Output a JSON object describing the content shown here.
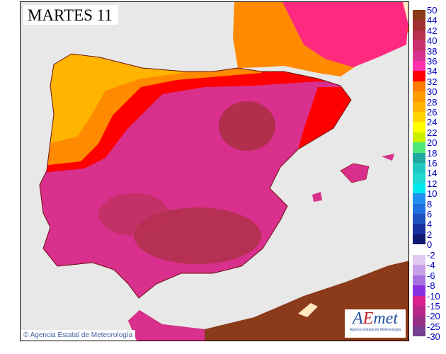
{
  "title": "MARTES 11",
  "credit": "Agencia Estatal de Meteorología",
  "logo": {
    "text": "AEmet",
    "subtitle": "Agencia Estatal de Meteorología"
  },
  "colors": {
    "sea": "#e8e8e8",
    "very_hot": "#8b3a1a",
    "hot": "#d8308c",
    "red": "#ff0000",
    "orange": "#ff8a00",
    "yellow": "#ffd000"
  },
  "legend": {
    "positive_labels": [
      "50",
      "44",
      "42",
      "40",
      "38",
      "36",
      "34",
      "32",
      "30",
      "28",
      "26",
      "24",
      "22",
      "20",
      "18",
      "16",
      "14",
      "12",
      "10",
      "8",
      "6",
      "4",
      "2",
      "0"
    ],
    "positive_colors": [
      "#8b3a1a",
      "#a23030",
      "#b83050",
      "#c83070",
      "#d83290",
      "#ff30b0",
      "#ff0000",
      "#ff7a00",
      "#ff9a00",
      "#ffb400",
      "#ffd400",
      "#ffff00",
      "#c8f000",
      "#50e878",
      "#20a8a0",
      "#20c8c0",
      "#20d8d0",
      "#00e8f0",
      "#2090f0",
      "#2070e0",
      "#2050c0",
      "#1830a0",
      "#101870"
    ],
    "negative_labels": [
      "-2",
      "-4",
      "-6",
      "-8",
      "-10",
      "-15",
      "-20",
      "-25",
      "-30"
    ],
    "negative_colors": [
      "#e0c8f0",
      "#c8a0e8",
      "#a870e0",
      "#8830e0",
      "#d82090",
      "#b82888",
      "#983088",
      "#784090"
    ]
  }
}
